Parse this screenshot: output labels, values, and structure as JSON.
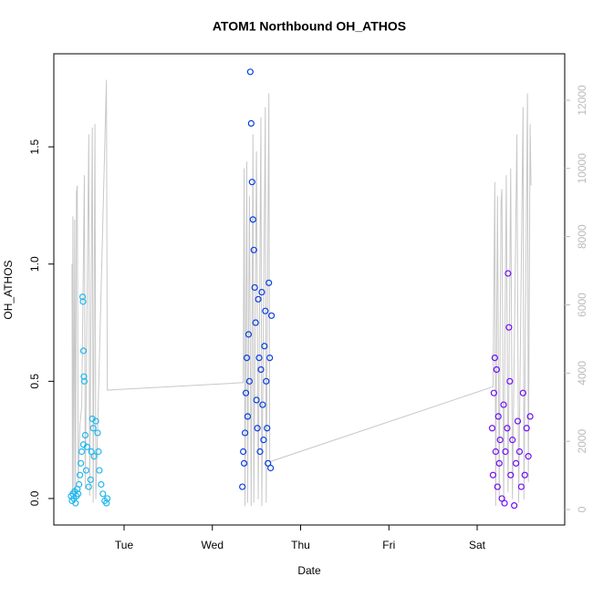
{
  "chart_data": {
    "type": "scatter",
    "title": "ATOM1 Northbound OH_ATHOS",
    "x_label": "Date",
    "y_label": "OH_ATHOS",
    "xlim": [
      1.204,
      6.992
    ],
    "xticks": [
      {
        "value": 2,
        "label": "Tue"
      },
      {
        "value": 3,
        "label": "Wed"
      },
      {
        "value": 4,
        "label": "Thu"
      },
      {
        "value": 5,
        "label": "Fri"
      },
      {
        "value": 6,
        "label": "Sat"
      }
    ],
    "ylim": [
      -0.113,
      1.897
    ],
    "yticks": [
      {
        "value": 0,
        "label": "0.0"
      },
      0.5,
      {
        "value": 1,
        "label": "1.0"
      },
      1.5
    ],
    "y2lim": [
      -454,
      13362
    ],
    "y2ticks": [
      0,
      2000,
      4000,
      6000,
      8000,
      10000,
      12000
    ],
    "y2_color": "#bbbbbb",
    "series": [
      {
        "color": "#22b8ee",
        "mode": "points",
        "x": [
          1.4,
          1.41,
          1.42,
          1.43,
          1.44,
          1.45,
          1.46,
          1.47,
          1.48,
          1.49,
          1.5,
          1.51,
          1.52,
          1.53,
          1.535,
          1.54,
          1.545,
          1.55,
          1.56,
          1.57,
          1.58,
          1.6,
          1.62,
          1.64,
          1.65,
          1.66,
          1.68,
          1.7,
          1.72,
          1.74,
          1.76,
          1.78,
          1.8,
          1.81,
          1.54,
          1.63,
          1.71
        ],
        "values": [
          0.01,
          -0.01,
          0.02,
          0.0,
          0.03,
          -0.02,
          0.01,
          0.04,
          0.02,
          0.06,
          0.1,
          0.15,
          0.2,
          0.86,
          0.84,
          0.63,
          0.52,
          0.5,
          0.27,
          0.12,
          0.22,
          0.05,
          0.08,
          0.34,
          0.3,
          0.18,
          0.33,
          0.28,
          0.12,
          0.06,
          0.02,
          -0.01,
          -0.02,
          0.0,
          0.23,
          0.2,
          0.2
        ]
      },
      {
        "color": "#0a3fe0",
        "mode": "points",
        "x": [
          3.34,
          3.35,
          3.36,
          3.37,
          3.38,
          3.39,
          3.4,
          3.41,
          3.42,
          3.43,
          3.44,
          3.45,
          3.46,
          3.47,
          3.48,
          3.49,
          3.5,
          3.51,
          3.52,
          3.53,
          3.54,
          3.55,
          3.56,
          3.57,
          3.58,
          3.59,
          3.6,
          3.61,
          3.62,
          3.63,
          3.64,
          3.65,
          3.66,
          3.67
        ],
        "values": [
          0.05,
          0.2,
          0.15,
          0.28,
          0.45,
          0.6,
          0.35,
          0.7,
          0.5,
          1.82,
          1.6,
          1.35,
          1.19,
          1.06,
          0.9,
          0.75,
          0.42,
          0.3,
          0.85,
          0.6,
          0.2,
          0.55,
          0.88,
          0.4,
          0.25,
          0.65,
          0.8,
          0.5,
          0.3,
          0.15,
          0.92,
          0.6,
          0.13,
          0.78
        ]
      },
      {
        "color": "#7010f5",
        "mode": "points",
        "x": [
          6.17,
          6.18,
          6.19,
          6.2,
          6.21,
          6.22,
          6.23,
          6.24,
          6.25,
          6.26,
          6.28,
          6.3,
          6.31,
          6.32,
          6.34,
          6.35,
          6.36,
          6.37,
          6.38,
          6.4,
          6.42,
          6.44,
          6.46,
          6.48,
          6.5,
          6.52,
          6.54,
          6.56,
          6.58,
          6.6
        ],
        "values": [
          0.3,
          0.1,
          0.45,
          0.6,
          0.2,
          0.55,
          0.05,
          0.35,
          0.15,
          0.25,
          0.0,
          0.4,
          -0.02,
          0.2,
          0.3,
          0.96,
          0.73,
          0.5,
          0.1,
          0.25,
          -0.03,
          0.15,
          0.33,
          0.2,
          0.05,
          0.45,
          0.1,
          0.3,
          0.18,
          0.35
        ]
      },
      {
        "color": "#c8c8c8",
        "mode": "line",
        "axis": "y2",
        "x": [
          1.41,
          1.415,
          1.42,
          1.43,
          1.44,
          1.45,
          1.46,
          1.47,
          1.48,
          1.5,
          1.52,
          1.55,
          1.56,
          1.6,
          1.61,
          1.64,
          1.65,
          1.67,
          1.68,
          1.8,
          1.81,
          3.35,
          3.36,
          3.37,
          3.39,
          3.4,
          3.42,
          3.44,
          3.46,
          3.47,
          3.5,
          3.52,
          3.55,
          3.56,
          3.6,
          3.61,
          3.64,
          3.65,
          6.18,
          6.2,
          6.21,
          6.23,
          6.25,
          6.27,
          6.28,
          6.3,
          6.33,
          6.35,
          6.38,
          6.4,
          6.45,
          6.47,
          6.52,
          6.53,
          6.57,
          6.58,
          6.6,
          6.61
        ],
        "values": [
          7200,
          500,
          8600,
          300,
          8500,
          200,
          9300,
          9500,
          800,
          2500,
          3000,
          9800,
          600,
          11000,
          400,
          11200,
          200,
          11300,
          300,
          12600,
          3500,
          3720,
          10000,
          100,
          10200,
          200,
          9200,
          100,
          11000,
          200,
          10500,
          300,
          11500,
          100,
          11800,
          200,
          12200,
          1400,
          3600,
          9600,
          100,
          9200,
          300,
          9000,
          9400,
          200,
          9800,
          500,
          10000,
          300,
          11000,
          200,
          11800,
          300,
          12200,
          800,
          11300,
          9500
        ]
      }
    ]
  }
}
